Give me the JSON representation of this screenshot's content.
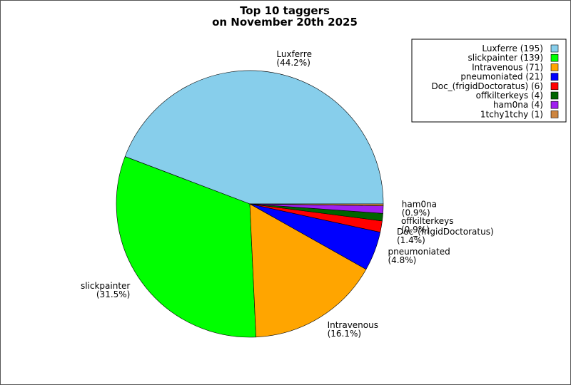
{
  "chart_data": {
    "type": "pie",
    "title_lines": [
      "Top 10 taggers",
      "on November 20th 2025"
    ],
    "grid": false,
    "legend_placement": "top-right",
    "slices": [
      {
        "name": "Luxferre",
        "value": 195,
        "percent_label": "(44.2%)",
        "legend_label": "Luxferre (195)",
        "color": "#87ceeb"
      },
      {
        "name": "slickpainter",
        "value": 139,
        "percent_label": "(31.5%)",
        "legend_label": "slickpainter (139)",
        "color": "#00ff00"
      },
      {
        "name": "Intravenous",
        "value": 71,
        "percent_label": "(16.1%)",
        "legend_label": "Intravenous (71)",
        "color": "#ffa500"
      },
      {
        "name": "pneumoniated",
        "value": 21,
        "percent_label": "(4.8%)",
        "legend_label": "pneumoniated (21)",
        "color": "#0000ff"
      },
      {
        "name": "Doc_(frigidDoctoratus)",
        "value": 6,
        "percent_label": "(1.4%)",
        "legend_label": "Doc_(frigidDoctoratus) (6)",
        "color": "#ff0000"
      },
      {
        "name": "offkilterkeys",
        "value": 4,
        "percent_label": "(0.9%)",
        "legend_label": "offkilterkeys (4)",
        "color": "#006400"
      },
      {
        "name": "ham0na",
        "value": 4,
        "percent_label": "(0.9%)",
        "legend_label": "ham0na (4)",
        "color": "#a020f0"
      },
      {
        "name": "1tchy1tchy",
        "value": 1,
        "percent_label": "",
        "legend_label": "1tchy1tchy (1)",
        "color": "#cd853f"
      }
    ]
  }
}
